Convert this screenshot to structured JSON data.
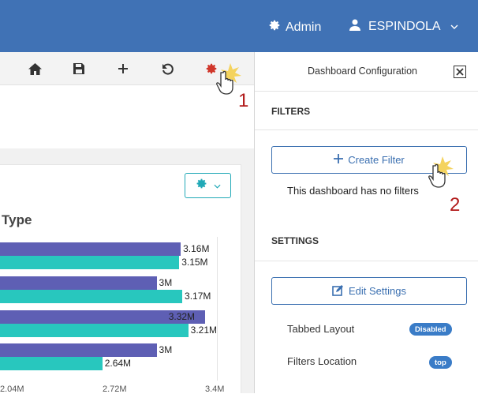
{
  "topbar": {
    "admin_label": "Admin",
    "user_label": "ESPINDOLA"
  },
  "toolbar": {
    "icons": [
      "home-icon",
      "save-icon",
      "plus-icon",
      "undo-icon",
      "gear-icon"
    ]
  },
  "widget": {
    "title_fragment": "Type",
    "chart_data": {
      "type": "bar",
      "orientation": "horizontal",
      "series": [
        {
          "color": "#5e5fb4",
          "values": [
            3.16,
            3.0,
            3.32,
            3.0
          ]
        },
        {
          "color": "#28c7be",
          "values": [
            3.15,
            3.17,
            3.21,
            2.64
          ]
        }
      ],
      "value_labels": [
        [
          "3.16M",
          "3.15M"
        ],
        [
          "3M",
          "3.17M"
        ],
        [
          "3.32M",
          "3.21M"
        ],
        [
          "3M",
          "2.64M"
        ]
      ],
      "x_ticks": [
        "2.04M",
        "2.72M",
        "3.4M"
      ],
      "xlim_visible": [
        2.04,
        3.4
      ],
      "units": "M"
    }
  },
  "panel": {
    "title": "Dashboard Configuration",
    "filters_heading": "FILTERS",
    "create_filter_label": "Create Filter",
    "no_filters_text": "This dashboard has no filters",
    "settings_heading": "SETTINGS",
    "edit_settings_label": "Edit Settings",
    "tabbed_layout_label": "Tabbed Layout",
    "tabbed_layout_value": "Disabled",
    "filters_location_label": "Filters Location",
    "filters_location_value": "top"
  },
  "annotations": {
    "step1": "1",
    "step2": "2"
  },
  "colors": {
    "topbar": "#4072b5",
    "accent_teal": "#21a9b7",
    "accent_blue": "#3a6fb0",
    "step_red": "#b21a1a"
  }
}
